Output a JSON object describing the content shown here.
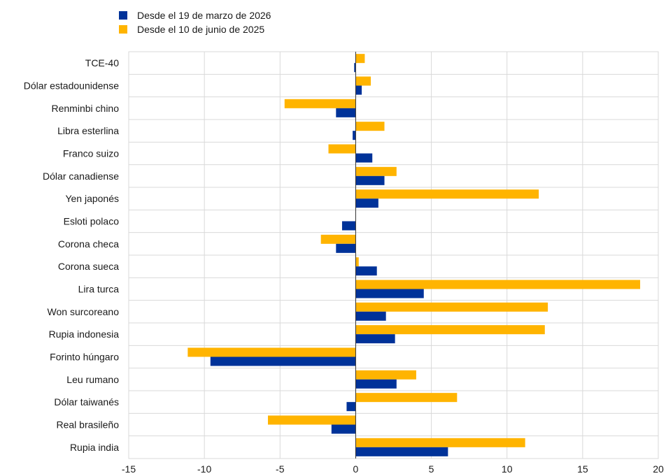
{
  "chart_data": {
    "type": "bar",
    "orientation": "horizontal",
    "title": "",
    "xlabel": "",
    "ylabel": "",
    "categories": [
      "TCE-40",
      "Dólar estadounidense",
      "Renminbi chino",
      "Libra esterlina",
      "Franco suizo",
      "Dólar canadiense",
      "Yen japonés",
      "Esloti polaco",
      "Corona checa",
      "Corona sueca",
      "Lira turca",
      "Won surcoreano",
      "Rupia indonesia",
      "Forinto húngaro",
      "Leu rumano",
      "Dólar taiwanés",
      "Real brasileño",
      "Rupia india"
    ],
    "series": [
      {
        "name": "Desde el 19 de marzo de 2026",
        "color": "#003299",
        "values": [
          -0.1,
          0.4,
          -1.3,
          -0.2,
          1.1,
          1.9,
          1.5,
          -0.9,
          -1.3,
          1.4,
          4.5,
          2.0,
          2.6,
          -9.6,
          2.7,
          -0.6,
          -1.6,
          6.1
        ]
      },
      {
        "name": "Desde el 10 de junio de 2025",
        "color": "#FFB400",
        "values": [
          0.6,
          1.0,
          -4.7,
          1.9,
          -1.8,
          2.7,
          12.1,
          0.0,
          -2.3,
          0.2,
          18.8,
          12.7,
          12.5,
          -11.1,
          4.0,
          6.7,
          -5.8,
          11.2
        ]
      }
    ],
    "xlim": [
      -15,
      20
    ],
    "xticks": [
      "-15",
      "-10",
      "-5",
      "0",
      "5",
      "10",
      "15",
      "20"
    ],
    "grid": true,
    "legend_position": "top-left"
  }
}
